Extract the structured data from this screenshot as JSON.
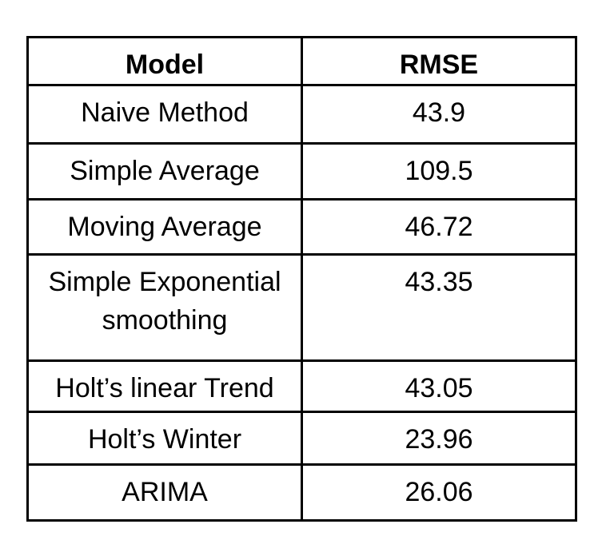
{
  "colors": {
    "background": "#ffffff",
    "border": "#000000",
    "text": "#000000"
  },
  "table": {
    "columns": [
      "Model",
      "RMSE"
    ],
    "rows": [
      {
        "model": "Naive Method",
        "rmse": "43.9"
      },
      {
        "model": "Simple Average",
        "rmse": "109.5"
      },
      {
        "model": "Moving Average",
        "rmse": "46.72"
      },
      {
        "model": "Simple Exponential smoothing",
        "rmse": "43.35"
      },
      {
        "model": "Holt’s linear Trend",
        "rmse": "43.05"
      },
      {
        "model": "Holt’s Winter",
        "rmse": "23.96"
      },
      {
        "model": "ARIMA",
        "rmse": "26.06"
      }
    ]
  },
  "chart_data": {
    "type": "table",
    "title": "",
    "columns": [
      "Model",
      "RMSE"
    ],
    "rows": [
      [
        "Naive Method",
        43.9
      ],
      [
        "Simple Average",
        109.5
      ],
      [
        "Moving Average",
        46.72
      ],
      [
        "Simple Exponential smoothing",
        43.35
      ],
      [
        "Holt’s linear Trend",
        43.05
      ],
      [
        "Holt’s Winter",
        23.96
      ],
      [
        "ARIMA",
        26.06
      ]
    ]
  }
}
